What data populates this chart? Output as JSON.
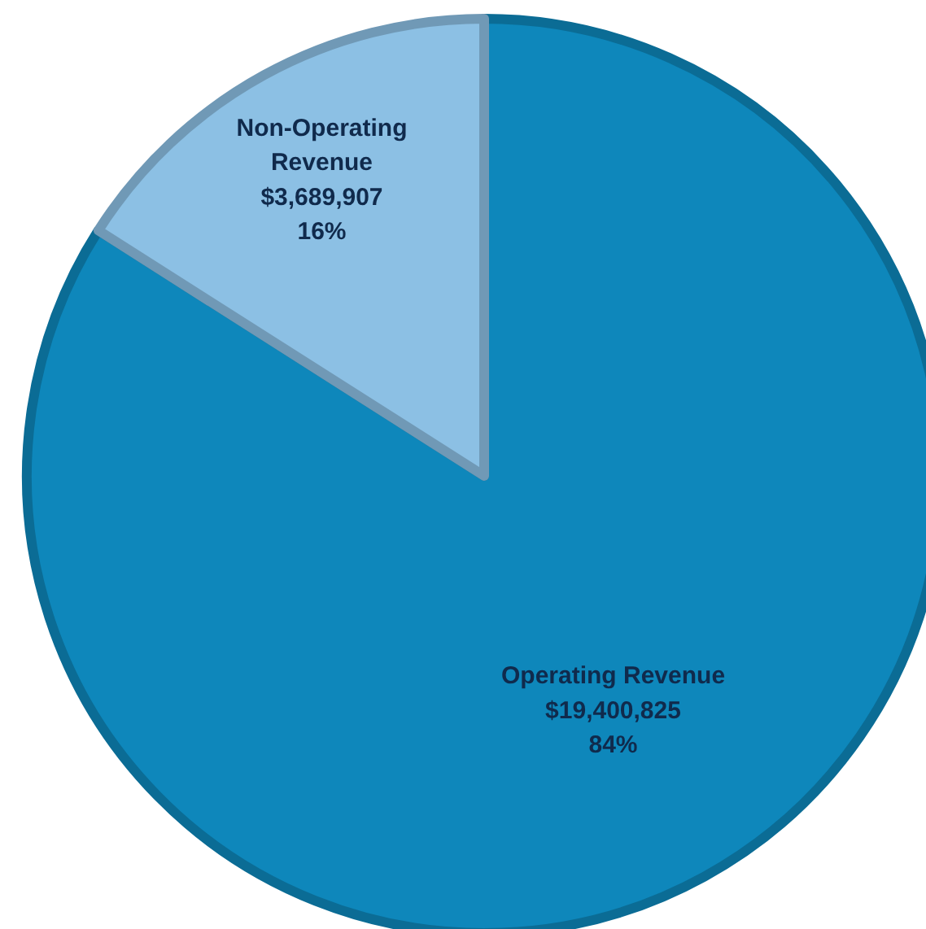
{
  "chart_data": {
    "type": "pie",
    "categories": [
      "Operating Revenue",
      "Non-Operating Revenue"
    ],
    "values": [
      19400825,
      3689907
    ],
    "value_labels": [
      "$19,400,825\n84%",
      "$3,689,907\n16%"
    ],
    "colors": [
      "#0e87bb",
      "#8cc0e4"
    ]
  }
}
